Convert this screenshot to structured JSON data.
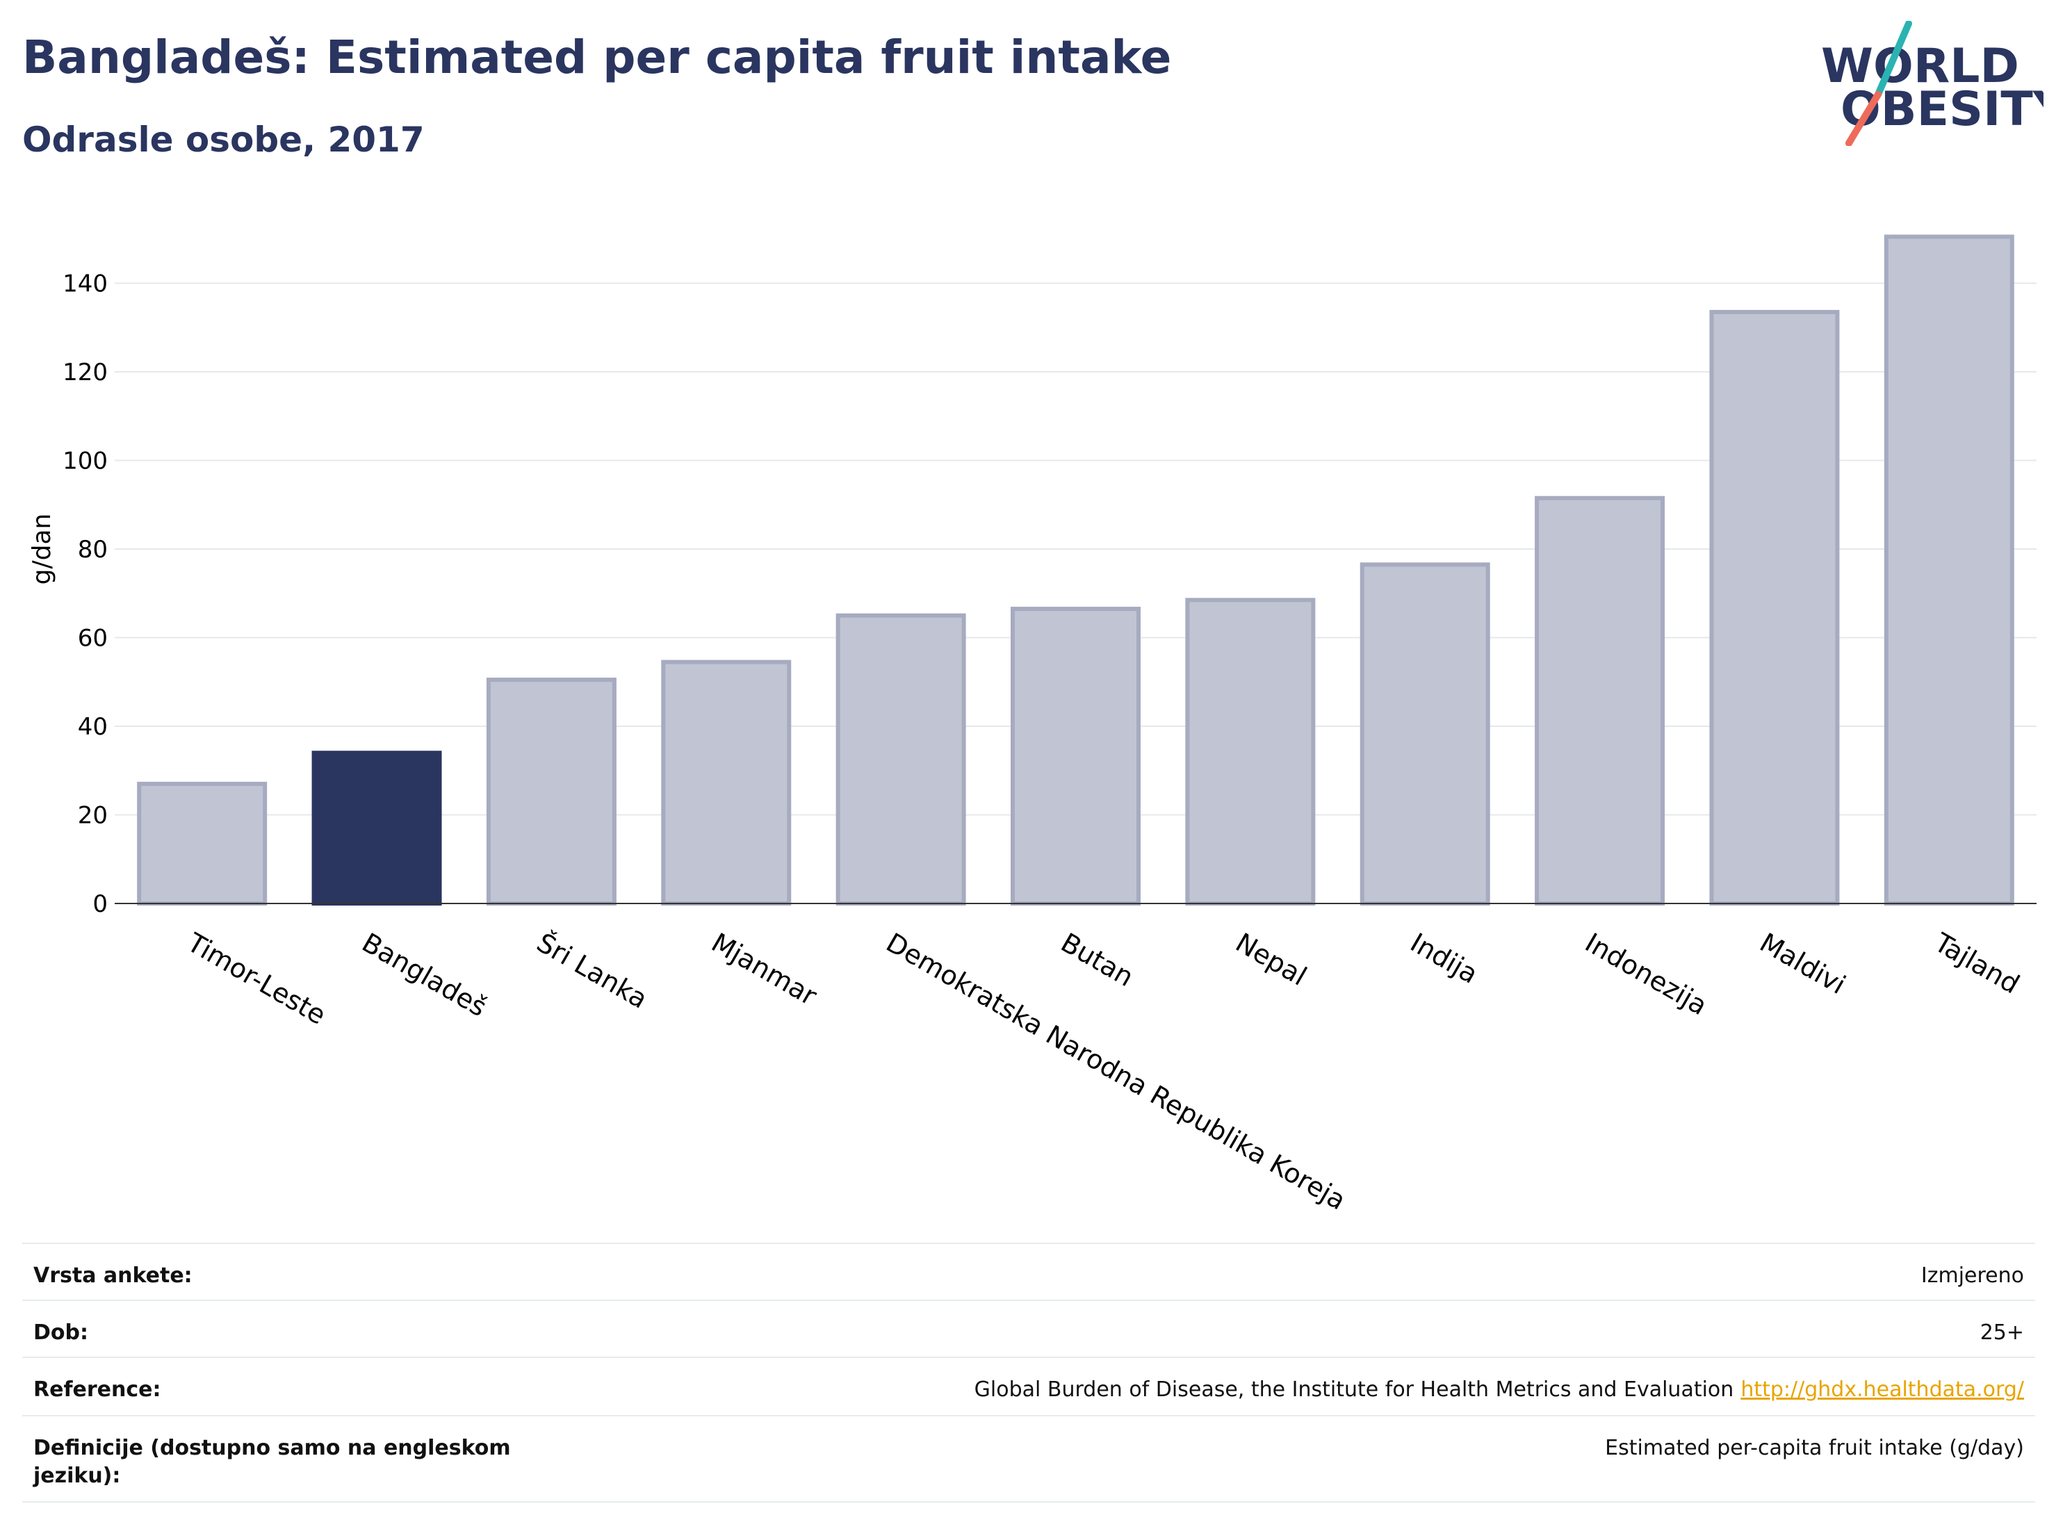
{
  "header": {
    "title": "Bangladeš: Estimated per capita fruit intake",
    "subtitle": "Odrasle osobe, 2017"
  },
  "logo": {
    "line1": "WORLD",
    "line2": "OBESITY",
    "name": "world-obesity-logo"
  },
  "chart_data": {
    "type": "bar",
    "categories": [
      "Timor-Leste",
      "Bangladeš",
      "Šri Lanka",
      "Mjanmar",
      "Demokratska Narodna Republika Koreja",
      "Butan",
      "Nepal",
      "Indija",
      "Indonezija",
      "Maldivi",
      "Tajland"
    ],
    "values": [
      27,
      34,
      50.5,
      54.5,
      65,
      66.5,
      68.5,
      76.5,
      91.5,
      133.5,
      150.5
    ],
    "highlight": "Bangladeš",
    "colors": {
      "highlight": "#2a3560",
      "default": "#c1c4d2",
      "default_edge": "#a6abc0"
    },
    "ylabel": "g/dan",
    "yticks": [
      0,
      20,
      40,
      60,
      80,
      100,
      120,
      140
    ],
    "ylim": [
      0,
      160
    ],
    "grid": true
  },
  "info": {
    "survey_type": {
      "label": "Vrsta ankete:",
      "value": "Izmjereno"
    },
    "age": {
      "label": "Dob:",
      "value": "25+"
    },
    "reference": {
      "label": "Reference:",
      "value": "Global Burden of Disease, the Institute for Health Metrics and Evaluation",
      "link": "http://ghdx.healthdata.org/"
    },
    "definitions": {
      "label": "Definicije (dostupno samo na engleskom jeziku):",
      "value": "Estimated per-capita fruit intake (g/day)"
    }
  }
}
